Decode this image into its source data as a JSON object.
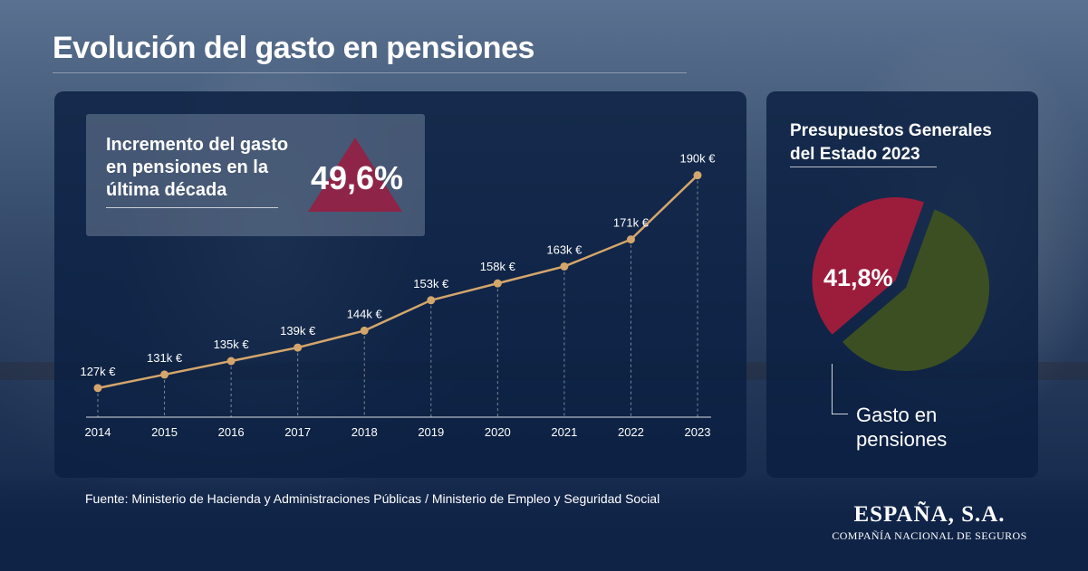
{
  "title": "Evolución del gasto en pensiones",
  "increment": {
    "label": "Incremento del gasto en pensiones en la última década",
    "value": "49,6%",
    "accent_color": "#8e2447"
  },
  "chart_data": [
    {
      "type": "line",
      "title": "",
      "x": [
        "2014",
        "2015",
        "2016",
        "2017",
        "2018",
        "2019",
        "2020",
        "2021",
        "2022",
        "2023"
      ],
      "values": [
        127,
        131,
        135,
        139,
        144,
        153,
        158,
        163,
        171,
        190
      ],
      "data_labels": [
        "127k €",
        "131k €",
        "135k €",
        "139k €",
        "144k €",
        "153k €",
        "158k €",
        "163k €",
        "171k €",
        "190k €"
      ],
      "unit": "k €",
      "ylim": [
        120,
        195
      ],
      "line_color": "#d4a66c",
      "grid": false
    },
    {
      "type": "pie",
      "title": "Presupuestos Generales del Estado 2023",
      "slices": [
        {
          "label": "Gasto en pensiones",
          "value": 41.8,
          "display": "41,8%",
          "color": "#9c1c3c",
          "exploded": true
        },
        {
          "label": "",
          "value": 58.2,
          "display": "",
          "color": "#3b4f23",
          "exploded": false
        }
      ]
    }
  ],
  "source": "Fuente: Ministerio de Hacienda y Administraciones Públicas / Ministerio de Empleo y Seguridad Social",
  "brand": {
    "name": "ESPAÑA, S.A.",
    "subtitle": "COMPAÑÍA NACIONAL DE SEGUROS"
  }
}
